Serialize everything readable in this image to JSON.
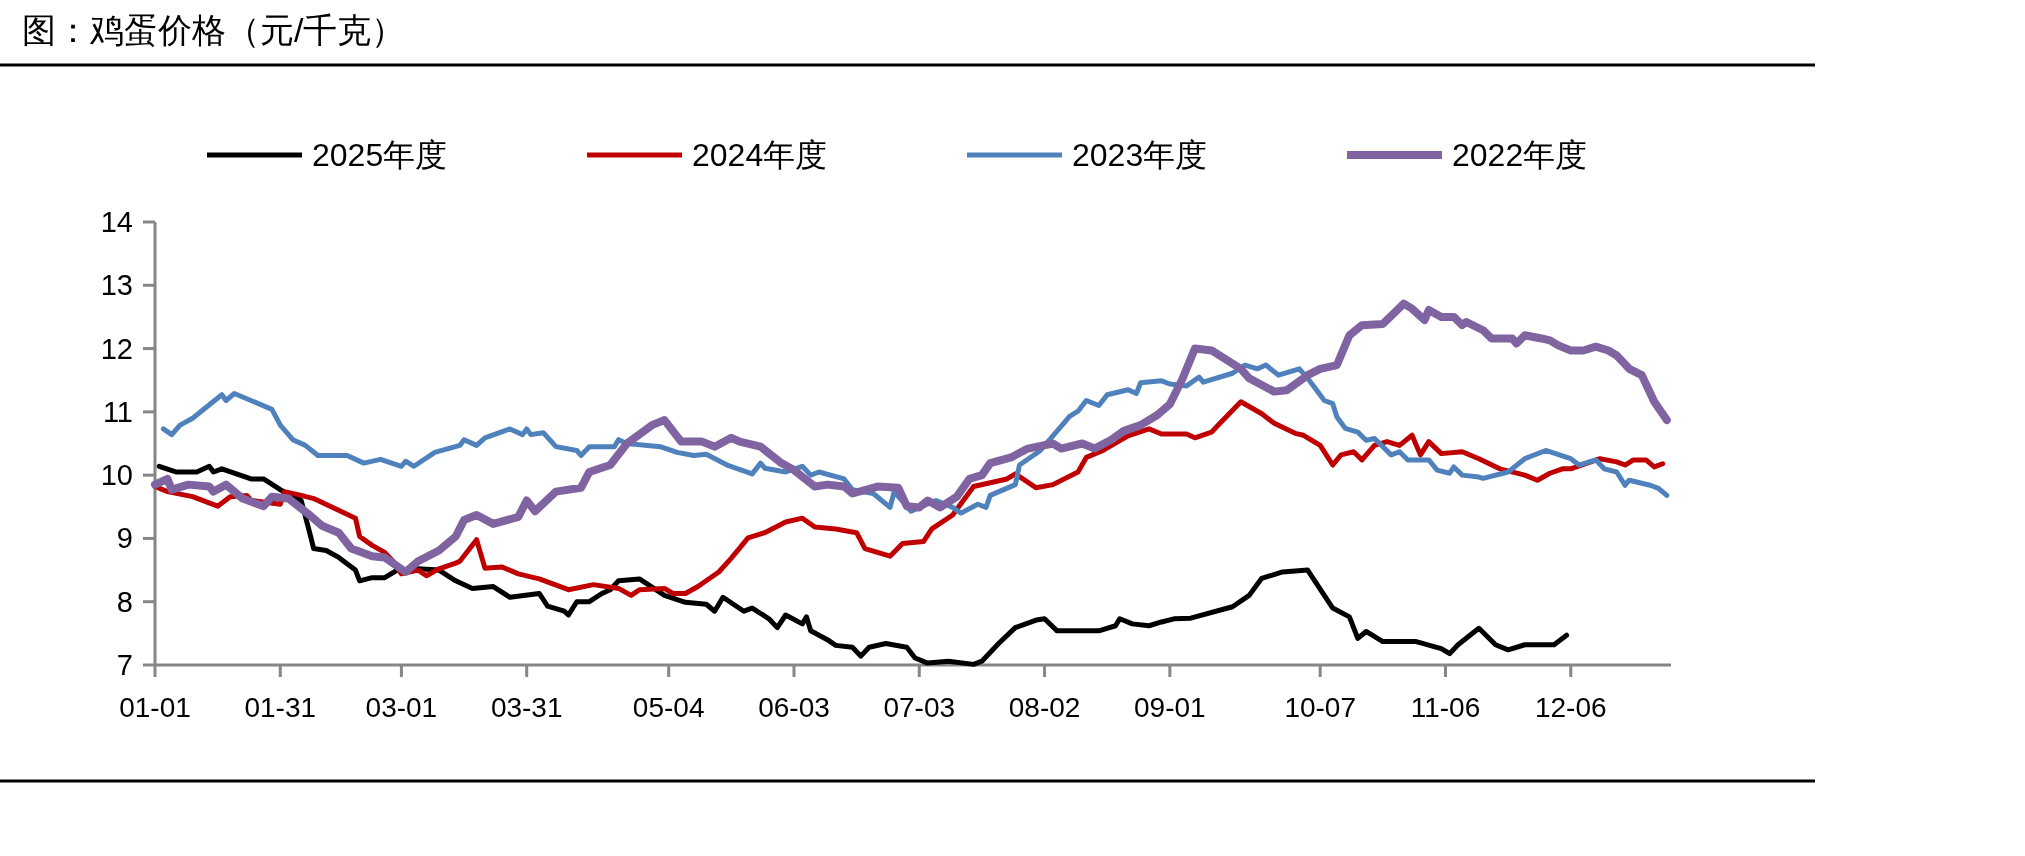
{
  "chart_data": {
    "type": "line",
    "title": "图：鸡蛋价格（元/千克）",
    "legend": "top",
    "grid": false,
    "marker": "none",
    "ylim": [
      7,
      14
    ],
    "yticks": [
      7,
      8,
      9,
      10,
      11,
      12,
      13,
      14
    ],
    "xlim": [
      "--01-01",
      "--12-30"
    ],
    "xticks": [
      {
        "value": "--01-01",
        "label": "01-01"
      },
      {
        "value": "--01-31",
        "label": "01-31"
      },
      {
        "value": "--03-01",
        "label": "03-01"
      },
      {
        "value": "--03-31",
        "label": "03-31"
      },
      {
        "value": "--05-04",
        "label": "05-04"
      },
      {
        "value": "--06-03",
        "label": "06-03"
      },
      {
        "value": "--07-03",
        "label": "07-03"
      },
      {
        "value": "--08-02",
        "label": "08-02"
      },
      {
        "value": "--09-01",
        "label": "09-01"
      },
      {
        "value": "--10-07",
        "label": "10-07"
      },
      {
        "value": "--11-06",
        "label": "11-06"
      },
      {
        "value": "--12-06",
        "label": "12-06"
      }
    ],
    "series": [
      {
        "name": "2025年度",
        "color": "#000000",
        "x": [
          "--01-02",
          "--01-06",
          "--01-11",
          "--01-14",
          "--01-15",
          "--01-17",
          "--01-24",
          "--01-27",
          "--01-31",
          "--02-05",
          "--02-07",
          "--02-08",
          "--02-11",
          "--02-14",
          "--02-18",
          "--02-19",
          "--02-22",
          "--02-25",
          "--02-28",
          "--03-05",
          "--03-10",
          "--03-14",
          "--03-18",
          "--03-23",
          "--03-27",
          "--04-03",
          "--04-05",
          "--04-09",
          "--04-10",
          "--04-12",
          "--04-15",
          "--04-18",
          "--04-20",
          "--04-22",
          "--04-27",
          "--05-03",
          "--05-08",
          "--05-13",
          "--05-15",
          "--05-17",
          "--05-22",
          "--05-24",
          "--05-28",
          "--05-30",
          "--06-01",
          "--06-05",
          "--06-06",
          "--06-07",
          "--06-11",
          "--06-13",
          "--06-17",
          "--06-19",
          "--06-21",
          "--06-25",
          "--06-30",
          "--07-02",
          "--07-05",
          "--07-10",
          "--07-16",
          "--07-18",
          "--07-22",
          "--07-26",
          "--07-31",
          "--08-02",
          "--08-05",
          "--08-15",
          "--08-19",
          "--08-20",
          "--08-23",
          "--08-27",
          "--08-30",
          "--09-02",
          "--09-06",
          "--09-16",
          "--09-20",
          "--09-23",
          "--09-28",
          "--10-04",
          "--10-10",
          "--10-14",
          "--10-16",
          "--10-18",
          "--10-22",
          "--10-30",
          "--11-05",
          "--11-07",
          "--11-09",
          "--11-14",
          "--11-18",
          "--11-21",
          "--11-25",
          "--12-02",
          "--12-05"
        ],
        "values": [
          10.14,
          10.05,
          10.05,
          10.14,
          10.05,
          10.1,
          9.94,
          9.94,
          9.77,
          9.6,
          9.1,
          8.84,
          8.81,
          8.7,
          8.5,
          8.33,
          8.38,
          8.38,
          8.5,
          8.52,
          8.5,
          8.33,
          8.21,
          8.24,
          8.07,
          8.13,
          7.93,
          7.85,
          7.79,
          8.0,
          8.0,
          8.13,
          8.19,
          8.33,
          8.36,
          8.1,
          7.99,
          7.96,
          7.85,
          8.07,
          7.85,
          7.9,
          7.73,
          7.59,
          7.79,
          7.65,
          7.76,
          7.54,
          7.4,
          7.31,
          7.28,
          7.14,
          7.28,
          7.34,
          7.28,
          7.11,
          7.03,
          7.06,
          7.01,
          7.06,
          7.34,
          7.59,
          7.71,
          7.73,
          7.54,
          7.54,
          7.62,
          7.73,
          7.65,
          7.62,
          7.68,
          7.73,
          7.74,
          7.92,
          8.1,
          8.37,
          8.47,
          8.5,
          7.9,
          7.76,
          7.42,
          7.53,
          7.37,
          7.37,
          7.26,
          7.18,
          7.32,
          7.58,
          7.32,
          7.24,
          7.32,
          7.32,
          7.47
        ]
      },
      {
        "name": "2024年度",
        "color": "#c00000",
        "x": [
          "--01-01",
          "--01-04",
          "--01-10",
          "--01-16",
          "--01-19",
          "--01-23",
          "--01-24",
          "--01-31",
          "--02-01",
          "--02-05",
          "--02-08",
          "--02-18",
          "--02-19",
          "--02-22",
          "--02-25",
          "--02-27",
          "--03-01",
          "--03-05",
          "--03-07",
          "--03-10",
          "--03-14",
          "--03-15",
          "--03-19",
          "--03-21",
          "--03-25",
          "--03-29",
          "--04-03",
          "--04-10",
          "--04-16",
          "--04-22",
          "--04-25",
          "--04-27",
          "--05-03",
          "--05-05",
          "--05-08",
          "--05-11",
          "--05-16",
          "--05-19",
          "--05-23",
          "--05-27",
          "--06-01",
          "--06-05",
          "--06-08",
          "--06-13",
          "--06-18",
          "--06-20",
          "--06-26",
          "--06-29",
          "--07-04",
          "--07-06",
          "--07-11",
          "--07-16",
          "--07-24",
          "--07-26",
          "--07-31",
          "--08-04",
          "--08-10",
          "--08-12",
          "--08-16",
          "--08-22",
          "--08-27",
          "--08-30",
          "--09-05",
          "--09-07",
          "--09-11",
          "--09-13",
          "--09-18",
          "--09-23",
          "--09-26",
          "--10-01",
          "--10-03",
          "--10-07",
          "--10-10",
          "--10-12",
          "--10-15",
          "--10-17",
          "--10-20",
          "--10-23",
          "--10-26",
          "--10-29",
          "--10-31",
          "--11-02",
          "--11-05",
          "--11-10",
          "--11-14",
          "--11-19",
          "--11-25",
          "--11-28",
          "--12-01",
          "--12-04",
          "--12-06",
          "--12-13",
          "--12-17",
          "--12-19",
          "--12-21",
          "--12-24",
          "--12-26",
          "--12-28"
        ],
        "values": [
          9.82,
          9.74,
          9.66,
          9.51,
          9.66,
          9.68,
          9.6,
          9.54,
          9.74,
          9.68,
          9.63,
          9.32,
          9.03,
          8.89,
          8.78,
          8.64,
          8.44,
          8.5,
          8.41,
          8.52,
          8.61,
          8.64,
          8.98,
          8.53,
          8.55,
          8.44,
          8.36,
          8.19,
          8.27,
          8.21,
          8.1,
          8.19,
          8.21,
          8.13,
          8.13,
          8.24,
          8.47,
          8.69,
          9.01,
          9.09,
          9.26,
          9.32,
          9.18,
          9.15,
          9.09,
          8.84,
          8.72,
          8.92,
          8.95,
          9.15,
          9.37,
          9.82,
          9.94,
          10.02,
          9.8,
          9.85,
          10.05,
          10.28,
          10.39,
          10.62,
          10.73,
          10.65,
          10.65,
          10.59,
          10.68,
          10.82,
          11.16,
          10.97,
          10.82,
          10.66,
          10.63,
          10.47,
          10.16,
          10.32,
          10.37,
          10.24,
          10.47,
          10.53,
          10.47,
          10.63,
          10.32,
          10.53,
          10.34,
          10.37,
          10.26,
          10.1,
          10.0,
          9.92,
          10.03,
          10.1,
          10.1,
          10.26,
          10.21,
          10.16,
          10.24,
          10.24,
          10.13,
          10.18
        ]
      },
      {
        "name": "2023年度",
        "color": "#4f81bd",
        "x": [
          "--01-03",
          "--01-05",
          "--01-07",
          "--01-10",
          "--01-17",
          "--01-18",
          "--01-20",
          "--01-29",
          "--01-31",
          "--02-03",
          "--02-06",
          "--02-09",
          "--02-16",
          "--02-20",
          "--02-24",
          "--03-01",
          "--03-02",
          "--03-04",
          "--03-09",
          "--03-15",
          "--03-16",
          "--03-19",
          "--03-21",
          "--03-27",
          "--03-30",
          "--03-31",
          "--04-01",
          "--04-04",
          "--04-07",
          "--04-12",
          "--04-13",
          "--04-15",
          "--04-21",
          "--04-22",
          "--04-24",
          "--05-02",
          "--05-06",
          "--05-10",
          "--05-13",
          "--05-18",
          "--05-24",
          "--05-26",
          "--05-27",
          "--06-01",
          "--06-05",
          "--06-07",
          "--06-09",
          "--06-15",
          "--06-17",
          "--06-22",
          "--06-26",
          "--06-27",
          "--07-01",
          "--07-07",
          "--07-11",
          "--07-13",
          "--07-17",
          "--07-19",
          "--07-20",
          "--07-26",
          "--07-27",
          "--08-01",
          "--08-04",
          "--08-08",
          "--08-10",
          "--08-12",
          "--08-15",
          "--08-17",
          "--08-22",
          "--08-24",
          "--08-25",
          "--08-30",
          "--09-01",
          "--09-05",
          "--09-08",
          "--09-09",
          "--09-16",
          "--09-19",
          "--09-22",
          "--09-24",
          "--09-27",
          "--10-02",
          "--10-04",
          "--10-08",
          "--10-10",
          "--10-11",
          "--10-13",
          "--10-16",
          "--10-18",
          "--10-20",
          "--10-24",
          "--10-26",
          "--10-28",
          "--11-02",
          "--11-04",
          "--11-07",
          "--11-08",
          "--11-10",
          "--11-14",
          "--11-15",
          "--11-21",
          "--11-25",
          "--11-30",
          "--12-06",
          "--12-08",
          "--12-12",
          "--12-14",
          "--12-17",
          "--12-19",
          "--12-20",
          "--12-25",
          "--12-27",
          "--12-29"
        ],
        "values": [
          10.73,
          10.64,
          10.79,
          10.9,
          11.27,
          11.18,
          11.29,
          11.04,
          10.79,
          10.56,
          10.47,
          10.31,
          10.31,
          10.19,
          10.25,
          10.14,
          10.22,
          10.14,
          10.36,
          10.47,
          10.56,
          10.47,
          10.59,
          10.73,
          10.64,
          10.73,
          10.64,
          10.67,
          10.45,
          10.39,
          10.31,
          10.45,
          10.45,
          10.56,
          10.5,
          10.45,
          10.36,
          10.31,
          10.33,
          10.16,
          10.02,
          10.19,
          10.11,
          10.05,
          10.14,
          10.0,
          10.05,
          9.94,
          9.77,
          9.71,
          9.49,
          9.74,
          9.43,
          9.6,
          9.49,
          9.4,
          9.54,
          9.49,
          9.68,
          9.85,
          10.16,
          10.39,
          10.62,
          10.93,
          11.01,
          11.18,
          11.1,
          11.27,
          11.35,
          11.29,
          11.46,
          11.49,
          11.44,
          11.41,
          11.55,
          11.47,
          11.61,
          11.74,
          11.68,
          11.74,
          11.58,
          11.68,
          11.53,
          11.18,
          11.13,
          10.92,
          10.74,
          10.68,
          10.55,
          10.58,
          10.32,
          10.37,
          10.24,
          10.24,
          10.08,
          10.03,
          10.13,
          10.0,
          9.97,
          9.95,
          10.05,
          10.26,
          10.39,
          10.26,
          10.16,
          10.24,
          10.1,
          10.05,
          9.84,
          9.92,
          9.84,
          9.79,
          9.68
        ]
      },
      {
        "name": "2022年度",
        "color": "#8064a2",
        "x": [
          "--01-01",
          "--01-04",
          "--01-05",
          "--01-09",
          "--01-14",
          "--01-15",
          "--01-18",
          "--01-22",
          "--01-27",
          "--01-29",
          "--02-02",
          "--02-07",
          "--02-10",
          "--02-14",
          "--02-17",
          "--02-22",
          "--02-25",
          "--03-02",
          "--03-05",
          "--03-10",
          "--03-14",
          "--03-16",
          "--03-19",
          "--03-23",
          "--03-29",
          "--03-31",
          "--04-02",
          "--04-07",
          "--04-13",
          "--04-15",
          "--04-20",
          "--04-24",
          "--04-30",
          "--05-03",
          "--05-07",
          "--05-12",
          "--05-15",
          "--05-19",
          "--05-21",
          "--05-26",
          "--05-31",
          "--06-03",
          "--06-08",
          "--06-11",
          "--06-15",
          "--06-17",
          "--06-23",
          "--06-28",
          "--06-30",
          "--07-03",
          "--07-05",
          "--07-08",
          "--07-12",
          "--07-15",
          "--07-18",
          "--07-20",
          "--07-25",
          "--07-29",
          "--08-04",
          "--08-06",
          "--08-11",
          "--08-14",
          "--08-18",
          "--08-21",
          "--08-25",
          "--08-29",
          "--09-01",
          "--09-04",
          "--09-07",
          "--09-11",
          "--09-18",
          "--09-20",
          "--09-26",
          "--09-29",
          "--10-04",
          "--10-07",
          "--10-11",
          "--10-14",
          "--10-17",
          "--10-22",
          "--10-25",
          "--10-27",
          "--10-29",
          "--11-01",
          "--11-02",
          "--11-05",
          "--11-08",
          "--11-10",
          "--11-11",
          "--11-15",
          "--11-17",
          "--11-22",
          "--11-23",
          "--11-25",
          "--11-29",
          "--12-01",
          "--12-03",
          "--12-06",
          "--12-09",
          "--12-12",
          "--12-15",
          "--12-17",
          "--12-20",
          "--12-23",
          "--12-26",
          "--12-29"
        ],
        "values": [
          9.85,
          9.94,
          9.77,
          9.85,
          9.82,
          9.74,
          9.85,
          9.63,
          9.51,
          9.66,
          9.63,
          9.37,
          9.2,
          9.09,
          8.84,
          8.72,
          8.7,
          8.47,
          8.64,
          8.81,
          9.03,
          9.29,
          9.37,
          9.23,
          9.34,
          9.6,
          9.43,
          9.74,
          9.8,
          10.05,
          10.16,
          10.5,
          10.79,
          10.87,
          10.53,
          10.53,
          10.45,
          10.59,
          10.53,
          10.45,
          10.19,
          10.08,
          9.82,
          9.85,
          9.82,
          9.71,
          9.82,
          9.8,
          9.51,
          9.49,
          9.6,
          9.49,
          9.66,
          9.94,
          10.0,
          10.19,
          10.28,
          10.42,
          10.5,
          10.42,
          10.5,
          10.42,
          10.56,
          10.7,
          10.79,
          10.95,
          11.12,
          11.52,
          12.0,
          11.97,
          11.68,
          11.53,
          11.32,
          11.34,
          11.58,
          11.68,
          11.74,
          12.21,
          12.37,
          12.39,
          12.58,
          12.71,
          12.63,
          12.45,
          12.61,
          12.5,
          12.5,
          12.37,
          12.42,
          12.29,
          12.16,
          12.16,
          12.08,
          12.21,
          12.16,
          12.13,
          12.05,
          11.97,
          11.97,
          12.03,
          11.97,
          11.89,
          11.68,
          11.58,
          11.16,
          10.87
        ]
      }
    ]
  }
}
